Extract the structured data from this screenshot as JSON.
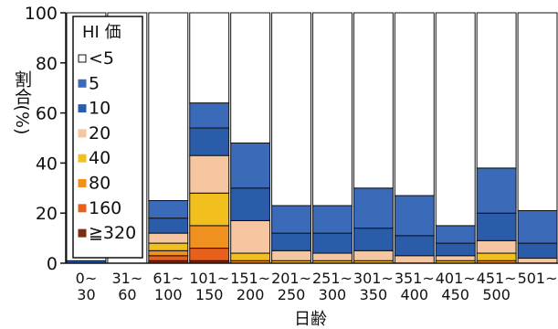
{
  "chart_data": {
    "type": "bar",
    "stacked": true,
    "title": "",
    "xlabel": "日齢",
    "ylabel": "割合(%)",
    "ylim": [
      0,
      100
    ],
    "yticks": [
      0,
      20,
      40,
      60,
      80,
      100
    ],
    "legend_title": "HI 価",
    "legend_position": "top-left",
    "categories": [
      {
        "top": "0~",
        "bottom": "30"
      },
      {
        "top": "31~",
        "bottom": "60"
      },
      {
        "top": "61~",
        "bottom": "100"
      },
      {
        "top": "101~",
        "bottom": "150"
      },
      {
        "top": "151~",
        "bottom": "200"
      },
      {
        "top": "201~",
        "bottom": "250"
      },
      {
        "top": "251~",
        "bottom": "300"
      },
      {
        "top": "301~",
        "bottom": "350"
      },
      {
        "top": "351~",
        "bottom": "400"
      },
      {
        "top": "401~",
        "bottom": "450"
      },
      {
        "top": "451~",
        "bottom": "500"
      },
      {
        "top": "501~",
        "bottom": ""
      }
    ],
    "series": [
      {
        "name": "≧320",
        "color": "#7a2e12",
        "values": [
          0,
          0,
          1,
          1,
          0,
          0,
          0,
          0,
          0,
          0,
          0,
          0
        ]
      },
      {
        "name": "160",
        "color": "#e8601c",
        "values": [
          0,
          0,
          2,
          5,
          0,
          0,
          0,
          0,
          0,
          0,
          0,
          0
        ]
      },
      {
        "name": "80",
        "color": "#f0901e",
        "values": [
          0,
          0,
          2,
          9,
          1,
          0,
          0,
          0,
          0,
          0,
          1,
          0
        ]
      },
      {
        "name": "40",
        "color": "#f2c01e",
        "values": [
          0,
          0,
          3,
          13,
          3,
          1,
          1,
          1,
          0,
          1,
          3,
          0
        ]
      },
      {
        "name": "20",
        "color": "#f5c6a0",
        "values": [
          0,
          0,
          4,
          15,
          13,
          4,
          3,
          4,
          3,
          2,
          5,
          2
        ]
      },
      {
        "name": "10",
        "color": "#2a5caa",
        "values": [
          1,
          0,
          6,
          11,
          13,
          7,
          8,
          9,
          8,
          5,
          11,
          6
        ]
      },
      {
        "name": "5",
        "color": "#3a6ab8",
        "values": [
          0,
          0,
          7,
          10,
          18,
          11,
          11,
          16,
          16,
          7,
          18,
          13
        ]
      },
      {
        "name": "<5",
        "color": "#ffffff",
        "values": [
          99,
          100,
          75,
          36,
          52,
          77,
          77,
          70,
          73,
          85,
          62,
          79
        ]
      }
    ]
  }
}
